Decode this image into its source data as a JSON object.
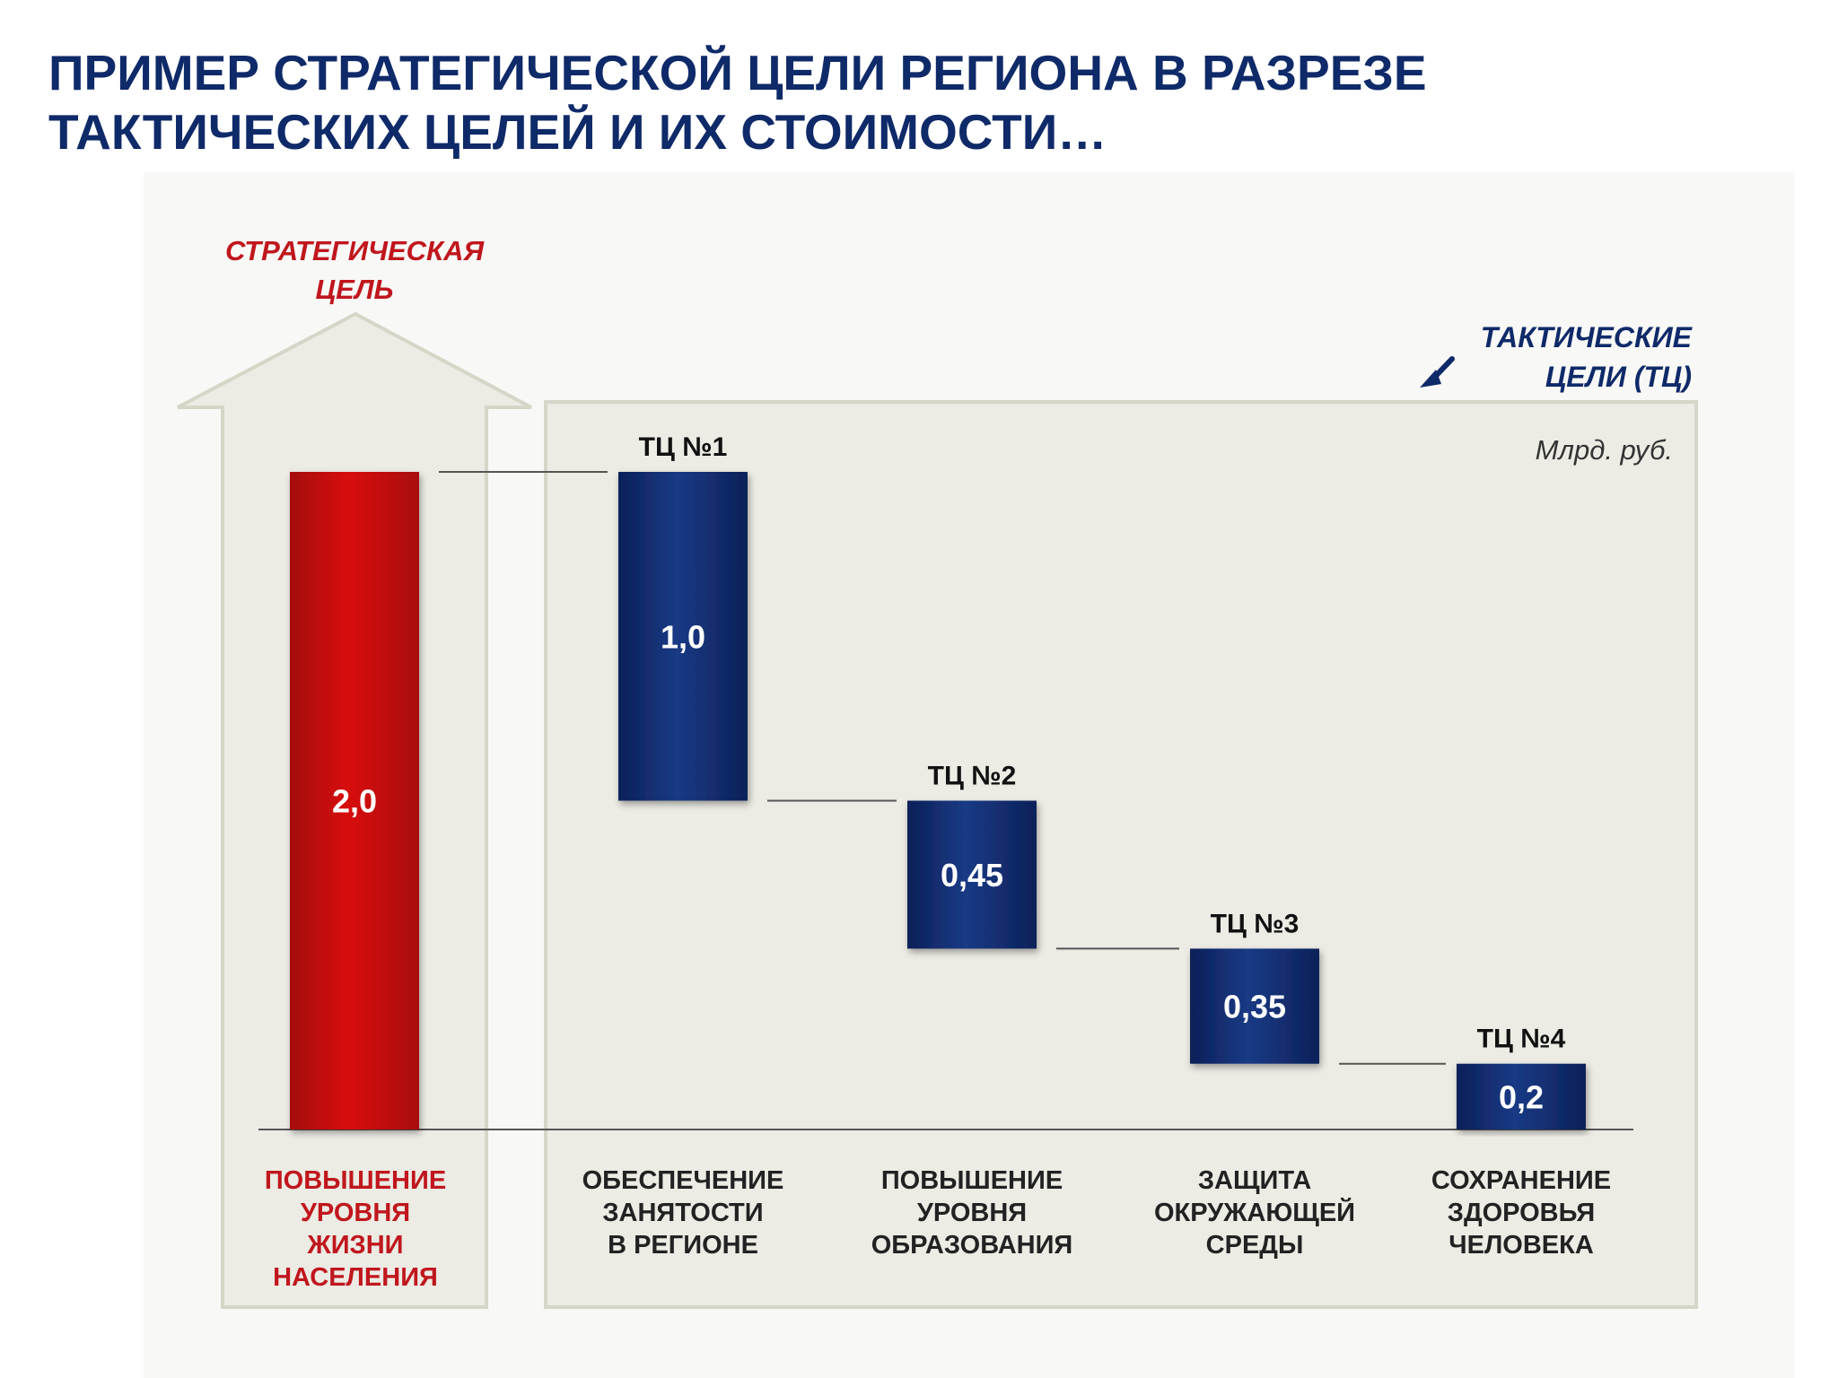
{
  "title_line1": "ПРИМЕР СТРАТЕГИЧЕСКОЙ ЦЕЛИ РЕГИОНА В РАЗРЕЗЕ",
  "title_line2": "ТАКТИЧЕСКИХ ЦЕЛЕЙ И ИХ СТОИМОСТИ…",
  "strategic_heading_line1": "СТРАТЕГИЧЕСКАЯ",
  "strategic_heading_line2": "ЦЕЛЬ",
  "tactical_heading_line1": "ТАКТИЧЕСКИЕ",
  "tactical_heading_line2": "ЦЕЛИ (ТЦ)",
  "unit": "Млрд. руб.",
  "colors": {
    "title": "#0f2a69",
    "strategic_bar": "#c8080c",
    "tactical_bar": "#0f2a69",
    "strategic_text": "#c0161d",
    "panel": "#ecebe4",
    "panel_border": "#d6d6c8"
  },
  "chart_data": {
    "type": "bar",
    "subtype": "waterfall",
    "unit": "Млрд. руб.",
    "ylim": [
      0,
      2.0
    ],
    "grid": false,
    "categories": [
      "ПОВЫШЕНИЕ УРОВНЯ ЖИЗНИ НАСЕЛЕНИЯ",
      "ОБЕСПЕЧЕНИЕ ЗАНЯТОСТИ В РЕГИОНЕ",
      "ПОВЫШЕНИЕ УРОВНЯ ОБРАЗОВАНИЯ",
      "ЗАЩИТА ОКРУЖАЮЩЕЙ СРЕДЫ",
      "СОХРАНЕНИЕ ЗДОРОВЬЯ ЧЕЛОВЕКА"
    ],
    "bars": [
      {
        "label": "",
        "value": 2.0,
        "value_label": "2,0",
        "kind": "total",
        "category_lines": [
          "ПОВЫШЕНИЕ",
          "УРОВНЯ",
          "ЖИЗНИ",
          "НАСЕЛЕНИЯ"
        ]
      },
      {
        "label": "ТЦ №1",
        "value": 1.0,
        "value_label": "1,0",
        "kind": "component",
        "category_lines": [
          "ОБЕСПЕЧЕНИЕ",
          "ЗАНЯТОСТИ",
          "В РЕГИОНЕ"
        ]
      },
      {
        "label": "ТЦ №2",
        "value": 0.45,
        "value_label": "0,45",
        "kind": "component",
        "category_lines": [
          "ПОВЫШЕНИЕ",
          "УРОВНЯ",
          "ОБРАЗОВАНИЯ"
        ]
      },
      {
        "label": "ТЦ №3",
        "value": 0.35,
        "value_label": "0,35",
        "kind": "component",
        "category_lines": [
          "ЗАЩИТА",
          "ОКРУЖАЮЩЕЙ",
          "СРЕДЫ"
        ]
      },
      {
        "label": "ТЦ №4",
        "value": 0.2,
        "value_label": "0,2",
        "kind": "component",
        "category_lines": [
          "СОХРАНЕНИЕ",
          "ЗДОРОВЬЯ",
          "ЧЕЛОВЕКА"
        ]
      }
    ]
  }
}
